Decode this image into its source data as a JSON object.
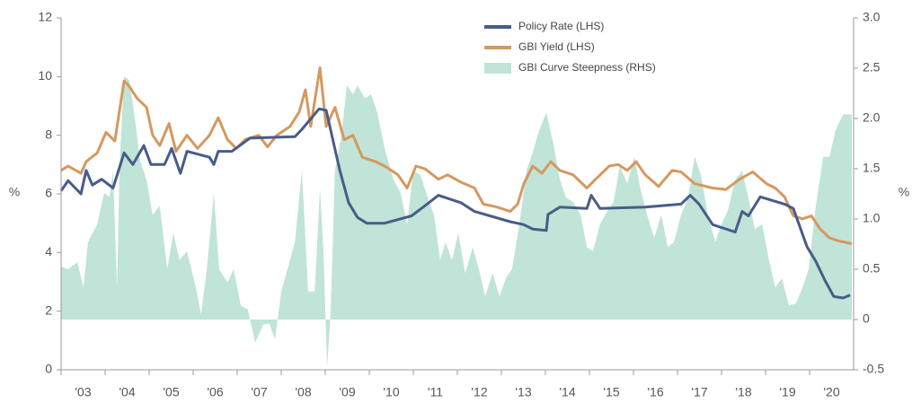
{
  "chart_data": {
    "type": "line",
    "xlim": [
      2003,
      2021
    ],
    "xticks": [
      {
        "value": 2003,
        "label": "'03"
      },
      {
        "value": 2004,
        "label": "'04"
      },
      {
        "value": 2005,
        "label": "'05"
      },
      {
        "value": 2006,
        "label": "'06"
      },
      {
        "value": 2007,
        "label": "'07"
      },
      {
        "value": 2008,
        "label": "'08"
      },
      {
        "value": 2009,
        "label": "'09"
      },
      {
        "value": 2010,
        "label": "'10"
      },
      {
        "value": 2011,
        "label": "'11"
      },
      {
        "value": 2012,
        "label": "'12"
      },
      {
        "value": 2013,
        "label": "'13"
      },
      {
        "value": 2014,
        "label": "'14"
      },
      {
        "value": 2015,
        "label": "'15"
      },
      {
        "value": 2016,
        "label": "'16"
      },
      {
        "value": 2017,
        "label": "'17"
      },
      {
        "value": 2018,
        "label": "'18"
      },
      {
        "value": 2019,
        "label": "'19"
      },
      {
        "value": 2020,
        "label": "'20"
      }
    ],
    "ylabel": "%",
    "y2label": "%",
    "ylim": [
      0,
      12
    ],
    "yticks": [
      0,
      2,
      4,
      6,
      8,
      10,
      12
    ],
    "y2lim": [
      -0.5,
      3.0
    ],
    "y2ticks": [
      -0.5,
      0,
      0.5,
      {
        "value": 1,
        "label": "1.0"
      },
      1.5,
      {
        "value": 2,
        "label": "2.0"
      },
      2.5,
      {
        "value": 3,
        "label": "3.0"
      }
    ],
    "legend": "top-center",
    "series": [
      {
        "name": "GBI Curve Steepness (RHS)",
        "type": "area",
        "axis": "y2",
        "color": "#c0e4d7",
        "x": [
          2003.0,
          2003.16,
          2003.37,
          2003.51,
          2003.61,
          2003.82,
          2003.98,
          2004.1,
          2004.18,
          2004.27,
          2004.33,
          2004.43,
          2004.55,
          2004.67,
          2004.8,
          2004.94,
          2005.08,
          2005.24,
          2005.41,
          2005.55,
          2005.69,
          2005.86,
          2006.06,
          2006.18,
          2006.31,
          2006.47,
          2006.59,
          2006.78,
          2006.92,
          2007.08,
          2007.24,
          2007.41,
          2007.59,
          2007.73,
          2007.86,
          2008.0,
          2008.14,
          2008.31,
          2008.47,
          2008.61,
          2008.76,
          2008.88,
          2008.96,
          2009.04,
          2009.12,
          2009.22,
          2009.37,
          2009.49,
          2009.63,
          2009.73,
          2009.9,
          2010.04,
          2010.18,
          2010.35,
          2010.55,
          2010.71,
          2010.86,
          2011.0,
          2011.16,
          2011.33,
          2011.47,
          2011.61,
          2011.73,
          2011.88,
          2012.02,
          2012.18,
          2012.35,
          2012.49,
          2012.63,
          2012.8,
          2012.96,
          2013.1,
          2013.24,
          2013.41,
          2013.57,
          2013.71,
          2013.86,
          2014.02,
          2014.18,
          2014.33,
          2014.47,
          2014.63,
          2014.8,
          2014.94,
          2015.08,
          2015.24,
          2015.41,
          2015.55,
          2015.69,
          2015.86,
          2016.02,
          2016.16,
          2016.31,
          2016.47,
          2016.63,
          2016.78,
          2016.92,
          2017.08,
          2017.24,
          2017.39,
          2017.53,
          2017.69,
          2017.86,
          2018.0,
          2018.14,
          2018.31,
          2018.47,
          2018.61,
          2018.76,
          2018.92,
          2019.08,
          2019.22,
          2019.37,
          2019.53,
          2019.69,
          2019.84,
          2019.98,
          2020.14,
          2020.31,
          2020.45,
          2020.59,
          2020.76,
          2020.96
        ],
        "values": [
          0.53,
          0.5,
          0.57,
          0.32,
          0.77,
          0.95,
          1.26,
          1.22,
          1.48,
          0.32,
          1.57,
          2.42,
          2.38,
          2.02,
          1.57,
          1.39,
          1.04,
          1.13,
          0.5,
          0.86,
          0.59,
          0.68,
          0.32,
          0.05,
          0.5,
          1.26,
          0.5,
          0.37,
          0.5,
          0.14,
          0.1,
          -0.23,
          -0.05,
          -0.04,
          -0.2,
          0.28,
          0.5,
          0.77,
          1.48,
          0.28,
          0.28,
          1.3,
          0.68,
          -0.48,
          0.05,
          1.48,
          1.84,
          2.33,
          2.24,
          2.33,
          2.2,
          2.24,
          2.06,
          1.7,
          1.39,
          1.26,
          0.95,
          1.48,
          1.44,
          1.21,
          1.04,
          0.59,
          0.77,
          0.59,
          0.86,
          0.46,
          0.72,
          0.5,
          0.23,
          0.46,
          0.23,
          0.41,
          0.5,
          0.95,
          1.48,
          1.66,
          1.88,
          2.06,
          1.75,
          1.39,
          1.21,
          1.17,
          1.04,
          0.72,
          0.68,
          0.95,
          1.08,
          1.17,
          1.53,
          1.35,
          1.62,
          1.3,
          1.04,
          0.81,
          1.04,
          0.72,
          0.77,
          1.04,
          1.21,
          1.62,
          1.44,
          1.04,
          0.77,
          0.95,
          1.08,
          1.39,
          1.48,
          1.21,
          0.9,
          0.95,
          0.59,
          0.32,
          0.41,
          0.14,
          0.16,
          0.32,
          0.5,
          1.13,
          1.62,
          1.62,
          1.88,
          2.04,
          2.04
        ]
      },
      {
        "name": "GBI Yield (LHS)",
        "type": "line",
        "color": "#d6985f",
        "x": [
          2003.0,
          2003.16,
          2003.45,
          2003.57,
          2003.82,
          2004.02,
          2004.22,
          2004.43,
          2004.53,
          2004.73,
          2004.94,
          2005.08,
          2005.24,
          2005.45,
          2005.61,
          2005.86,
          2006.1,
          2006.37,
          2006.57,
          2006.78,
          2006.98,
          2007.18,
          2007.49,
          2007.69,
          2007.9,
          2008.2,
          2008.41,
          2008.55,
          2008.67,
          2008.88,
          2009.02,
          2009.22,
          2009.43,
          2009.63,
          2009.84,
          2010.14,
          2010.35,
          2010.65,
          2010.86,
          2011.06,
          2011.27,
          2011.57,
          2011.78,
          2012.08,
          2012.39,
          2012.59,
          2012.9,
          2013.2,
          2013.37,
          2013.51,
          2013.71,
          2013.92,
          2014.12,
          2014.33,
          2014.63,
          2014.94,
          2015.14,
          2015.45,
          2015.65,
          2015.86,
          2016.06,
          2016.27,
          2016.57,
          2016.88,
          2017.08,
          2017.39,
          2017.8,
          2018.1,
          2018.41,
          2018.71,
          2019.02,
          2019.22,
          2019.43,
          2019.63,
          2019.84,
          2020.04,
          2020.24,
          2020.45,
          2020.65,
          2020.96
        ],
        "values": [
          6.8,
          6.95,
          6.7,
          7.1,
          7.4,
          8.1,
          7.8,
          9.85,
          9.7,
          9.25,
          8.95,
          8.0,
          7.65,
          8.4,
          7.45,
          8.0,
          7.55,
          8.0,
          8.6,
          7.85,
          7.55,
          7.85,
          8.0,
          7.6,
          8.0,
          8.3,
          8.8,
          9.55,
          8.3,
          10.3,
          8.3,
          8.95,
          7.85,
          8.0,
          7.25,
          7.1,
          6.95,
          6.65,
          6.2,
          6.95,
          6.85,
          6.5,
          6.65,
          6.4,
          6.2,
          5.65,
          5.55,
          5.4,
          5.65,
          6.35,
          6.95,
          6.7,
          7.1,
          6.8,
          6.65,
          6.2,
          6.5,
          6.95,
          7.0,
          6.8,
          7.1,
          6.65,
          6.25,
          6.8,
          6.75,
          6.35,
          6.2,
          6.15,
          6.5,
          6.75,
          6.35,
          6.2,
          5.9,
          5.25,
          5.15,
          5.25,
          4.8,
          4.5,
          4.4,
          4.3
        ]
      },
      {
        "name": "Policy Rate (LHS)",
        "type": "line",
        "color": "#485c88",
        "x": [
          2003.0,
          2003.16,
          2003.45,
          2003.57,
          2003.71,
          2003.92,
          2004.18,
          2004.43,
          2004.63,
          2004.88,
          2005.04,
          2005.35,
          2005.51,
          2005.71,
          2005.86,
          2006.37,
          2006.47,
          2006.57,
          2006.88,
          2007.29,
          2008.31,
          2008.47,
          2008.86,
          2009.02,
          2009.33,
          2009.53,
          2009.73,
          2009.94,
          2010.35,
          2010.96,
          2011.27,
          2011.57,
          2012.08,
          2012.39,
          2013.2,
          2013.51,
          2013.71,
          2014.02,
          2014.06,
          2014.33,
          2014.94,
          2015.04,
          2015.24,
          2016.27,
          2017.08,
          2017.29,
          2017.49,
          2017.8,
          2018.31,
          2018.47,
          2018.61,
          2018.88,
          2019.43,
          2019.63,
          2019.94,
          2020.14,
          2020.35,
          2020.55,
          2020.76,
          2020.92
        ],
        "values": [
          6.1,
          6.45,
          6.0,
          6.8,
          6.3,
          6.5,
          6.2,
          7.4,
          7.0,
          7.65,
          7.0,
          7.0,
          7.55,
          6.7,
          7.45,
          7.25,
          7.0,
          7.45,
          7.45,
          7.9,
          7.95,
          8.2,
          8.9,
          8.85,
          6.8,
          5.7,
          5.2,
          5.0,
          5.0,
          5.25,
          5.6,
          5.95,
          5.7,
          5.4,
          5.05,
          4.95,
          4.8,
          4.75,
          5.3,
          5.55,
          5.5,
          5.95,
          5.5,
          5.55,
          5.65,
          5.95,
          5.65,
          4.95,
          4.7,
          5.4,
          5.25,
          5.9,
          5.65,
          5.5,
          4.2,
          3.7,
          3.05,
          2.5,
          2.45,
          2.55
        ]
      }
    ]
  }
}
